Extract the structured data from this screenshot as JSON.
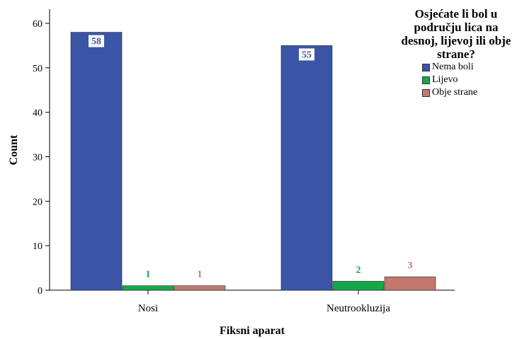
{
  "chart_data": {
    "type": "bar",
    "xlabel": "Fiksni aparat",
    "ylabel": "Count",
    "ylim": [
      0,
      60
    ],
    "yticks": [
      0,
      10,
      20,
      30,
      40,
      50,
      60
    ],
    "categories": [
      "Nosi",
      "Neutrookluzija"
    ],
    "legend_title": "Osjećate li bol u području lica na desnoj, lijevoj ili obje strane?",
    "legend_placement": "top-right",
    "grid": false,
    "series": [
      {
        "name": "Nema boli",
        "values": [
          58,
          55
        ],
        "color": "#3a55a8"
      },
      {
        "name": "Lijevo",
        "values": [
          1,
          2
        ],
        "color": "#15a84a"
      },
      {
        "name": "Obje strane",
        "values": [
          1,
          3
        ],
        "color": "#c4776c"
      }
    ]
  }
}
